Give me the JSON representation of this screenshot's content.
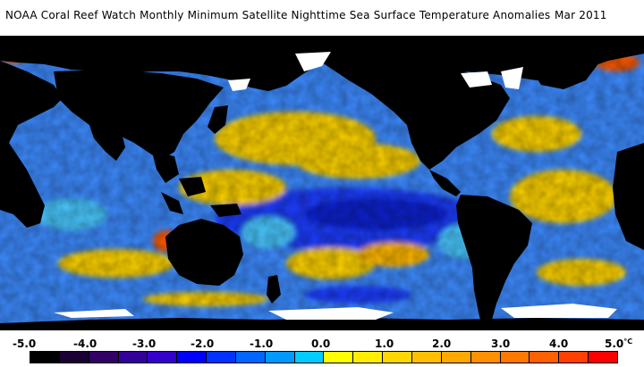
{
  "title": {
    "main": "NOAA Coral Reef Watch Monthly Minimum Satellite Nighttime Sea Surface Temperature Anomalies",
    "date": "Mar 2011"
  },
  "legend": {
    "ticks": [
      "-5.0",
      "-4.0",
      "-3.0",
      "-2.0",
      "-1.0",
      "0.0",
      "1.0",
      "2.0",
      "3.0",
      "4.0",
      "5.0"
    ],
    "unit": "°C",
    "colors": [
      "#000000",
      "#1a0033",
      "#330066",
      "#330099",
      "#3300cc",
      "#0000ff",
      "#0033ff",
      "#0066ff",
      "#0099ff",
      "#00ccff",
      "#ffff00",
      "#ffee00",
      "#ffd700",
      "#ffbf00",
      "#ffa800",
      "#ff9000",
      "#ff7800",
      "#ff6000",
      "#ff4000",
      "#ff0000"
    ]
  },
  "palette": {
    "land": "#000000",
    "ice": "#ffffff",
    "ocean_cool": "#3d8bff",
    "ocean_deep_cool": "#1a3cff",
    "ocean_neutral": "#48c8ff",
    "ocean_warm": "#ffd400",
    "ocean_hot": "#ff5a00"
  }
}
